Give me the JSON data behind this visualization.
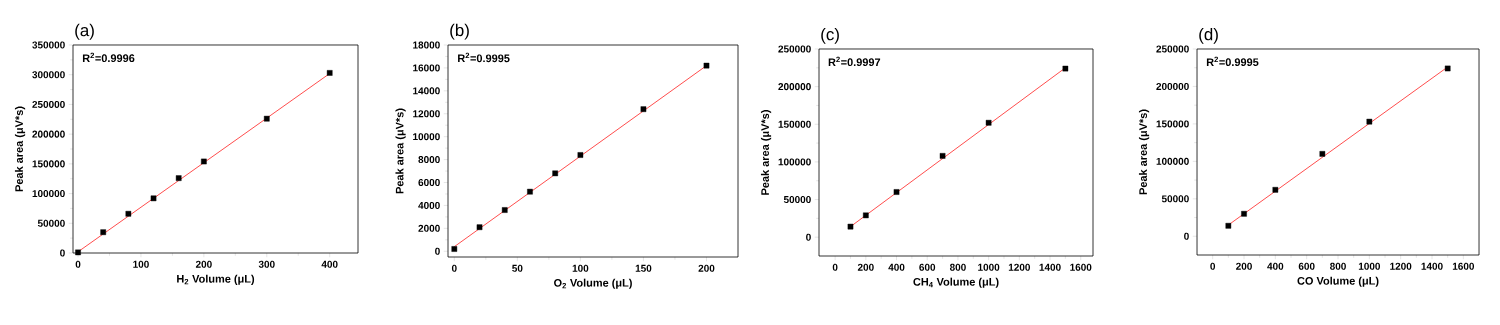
{
  "chart_data": [
    {
      "type": "scatter",
      "title": "(a)",
      "xlabel": "H$_{2}$ Volume (μL)",
      "ylabel": "Peak area (μV*s)",
      "annotations": [
        "R$^{2}$=0.9996"
      ],
      "xlim": [
        -8,
        445
      ],
      "ylim": [
        0,
        350000
      ],
      "xticks": [
        0,
        100,
        200,
        300,
        400
      ],
      "yticks": [
        0,
        50000,
        100000,
        150000,
        200000,
        250000,
        300000,
        350000
      ],
      "series": [
        {
          "marker": "square",
          "color": "#000000",
          "x": [
            0,
            40,
            80,
            120,
            160,
            200,
            300,
            400
          ],
          "values": [
            1000,
            35000,
            66000,
            92000,
            126000,
            154000,
            226000,
            303000
          ]
        },
        {
          "type": "line",
          "marker": "none",
          "color": "#ff0000",
          "x": [
            0,
            400
          ],
          "values": [
            2000,
            302000
          ]
        }
      ]
    },
    {
      "type": "scatter",
      "title": "(b)",
      "xlabel": "O$_{2}$ Volume (μL)",
      "ylabel": "Peak area (μV*s)",
      "annotations": [
        "R$^{2}$=0.9995"
      ],
      "xlim": [
        -5,
        225
      ],
      "ylim": [
        -500,
        18000
      ],
      "xticks": [
        0,
        50,
        100,
        150,
        200
      ],
      "yticks": [
        0,
        2000,
        4000,
        6000,
        8000,
        10000,
        12000,
        14000,
        16000,
        18000
      ],
      "series": [
        {
          "marker": "square",
          "color": "#000000",
          "x": [
            0,
            20,
            40,
            60,
            80,
            100,
            150,
            200
          ],
          "values": [
            200,
            2100,
            3600,
            5200,
            6800,
            8400,
            12400,
            16200
          ]
        },
        {
          "type": "line",
          "marker": "none",
          "color": "#ff0000",
          "x": [
            0,
            200
          ],
          "values": [
            400,
            16200
          ]
        }
      ]
    },
    {
      "type": "scatter",
      "title": "(c)",
      "xlabel": "CH$_{4}$ Volume (μL)",
      "ylabel": "Peak area (μV*s)",
      "annotations": [
        "R$^{2}$=0.9997"
      ],
      "xlim": [
        -105,
        1680
      ],
      "ylim": [
        -25000,
        250000
      ],
      "xticks": [
        0,
        200,
        400,
        600,
        800,
        1000,
        1200,
        1400,
        1600
      ],
      "yticks": [
        0,
        50000,
        100000,
        150000,
        200000,
        250000
      ],
      "series": [
        {
          "marker": "square",
          "color": "#000000",
          "x": [
            100,
            200,
            400,
            700,
            1000,
            1500
          ],
          "values": [
            14000,
            29000,
            60000,
            108000,
            152000,
            224000
          ]
        },
        {
          "type": "line",
          "marker": "none",
          "color": "#ff0000",
          "x": [
            100,
            1500
          ],
          "values": [
            14000,
            225000
          ]
        }
      ]
    },
    {
      "type": "scatter",
      "title": "(d)",
      "xlabel": "CO Volume (μL)",
      "ylabel": "Peak area (μV*s)",
      "annotations": [
        "R$^{2}$=0.9995"
      ],
      "xlim": [
        -100,
        1700
      ],
      "ylim": [
        -25000,
        250000
      ],
      "xticks": [
        0,
        200,
        400,
        600,
        800,
        1000,
        1200,
        1400,
        1600
      ],
      "yticks": [
        0,
        50000,
        100000,
        150000,
        200000,
        250000
      ],
      "series": [
        {
          "marker": "square",
          "color": "#000000",
          "x": [
            100,
            200,
            400,
            700,
            1000,
            1500
          ],
          "values": [
            14000,
            30000,
            62000,
            110000,
            153000,
            224000
          ]
        },
        {
          "type": "line",
          "marker": "none",
          "color": "#ff0000",
          "x": [
            100,
            1500
          ],
          "values": [
            15000,
            226000
          ]
        }
      ]
    }
  ]
}
